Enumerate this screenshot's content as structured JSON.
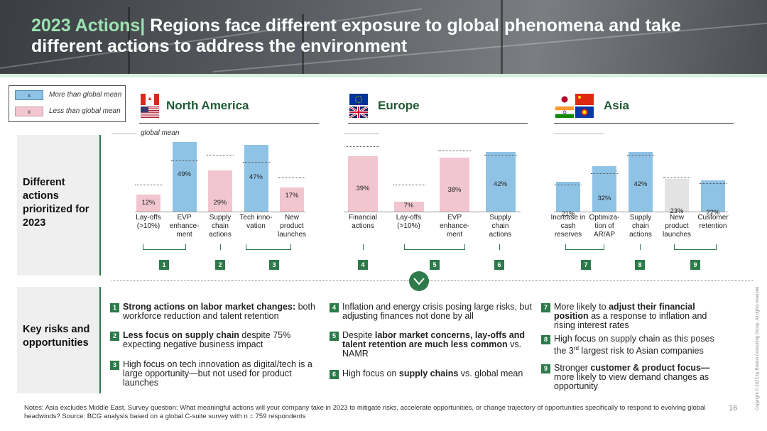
{
  "header": {
    "title_accent": "2023 Actions|",
    "title_main": " Regions face different exposure to global phenomena and take different actions to address the environment"
  },
  "legend": {
    "more_marker": "x",
    "more_label": "More than global mean",
    "less_marker": "x",
    "less_label": "Less than global mean"
  },
  "colors": {
    "more": "#8fc3e6",
    "less": "#f1c6d0",
    "neutral": "#e3e3e3",
    "accent_green": "#2d7a4a",
    "region_title": "#1e5a36"
  },
  "regions": {
    "na": {
      "name": "North America",
      "flags": [
        "canada-flag-icon",
        "usa-flag-icon"
      ]
    },
    "eu": {
      "name": "Europe",
      "flags": [
        "eu-flag-icon",
        "uk-flag-icon"
      ]
    },
    "asia": {
      "name": "Asia",
      "flags": [
        "japan-flag-icon",
        "china-flag-icon",
        "india-flag-icon",
        "asean-flag-icon"
      ]
    }
  },
  "rows": {
    "actions_label": "Different actions prioritized for 2023",
    "risks_label": "Key risks and opportunities"
  },
  "global_mean_label": "global mean",
  "chart_data": [
    {
      "type": "bar",
      "region": "North America",
      "categories": [
        "Lay-offs (>10%)",
        "EVP enhance-ment",
        "Supply chain actions",
        "Tech inno-vation",
        "New product launches"
      ],
      "values": [
        12,
        49,
        29,
        47,
        17
      ],
      "labels": [
        "12%",
        "49%",
        "29%",
        "47%",
        "17%"
      ],
      "global_mean": [
        19,
        36,
        40,
        35,
        24
      ],
      "status": [
        "less",
        "more",
        "less",
        "more",
        "less"
      ],
      "ylim": [
        0,
        55
      ]
    },
    {
      "type": "bar",
      "region": "Europe",
      "categories": [
        "Financial actions",
        "Lay-offs (>10%)",
        "EVP enhance-ment",
        "Supply chain actions"
      ],
      "values": [
        39,
        7,
        38,
        42
      ],
      "labels": [
        "39%",
        "7%",
        "38%",
        "42%"
      ],
      "global_mean": [
        46,
        19,
        43,
        40
      ],
      "status": [
        "less",
        "less",
        "less",
        "more"
      ],
      "ylim": [
        0,
        55
      ]
    },
    {
      "type": "bar",
      "region": "Asia",
      "categories": [
        "Increase in cash reserves",
        "Optimiza-tion of AR/AP",
        "Supply chain actions",
        "New product launches",
        "Customer retention"
      ],
      "values": [
        21,
        32,
        42,
        23,
        22
      ],
      "labels": [
        "21%",
        "32%",
        "42%",
        "23%",
        "22%"
      ],
      "global_mean": [
        19,
        27,
        40,
        24,
        20
      ],
      "status": [
        "more",
        "more",
        "more",
        "neutral",
        "more"
      ],
      "ylim": [
        0,
        55
      ]
    }
  ],
  "groups": [
    "1",
    "2",
    "3",
    "4",
    "5",
    "6",
    "7",
    "8",
    "9"
  ],
  "risks": {
    "na": [
      {
        "n": "1",
        "bold": "Strong actions on labor market changes:",
        "rest": " both workforce reduction and talent retention"
      },
      {
        "n": "2",
        "bold": "Less focus on supply chain",
        "rest": " despite 75% expecting negative business impact"
      },
      {
        "n": "3",
        "bold": "",
        "rest": "High focus on tech innovation as digital/tech is a large opportunity—but not used for product launches"
      }
    ],
    "eu": [
      {
        "n": "4",
        "pre": "Inflation and energy crisis posing large risks, but adjusting finances not done by all",
        "bold": "",
        "post": ""
      },
      {
        "n": "5",
        "pre": "Despite ",
        "bold": "labor market concerns, lay-offs and talent retention are much less common",
        "post": " vs. NAMR"
      },
      {
        "n": "6",
        "pre": "High focus on ",
        "bold": "supply chains",
        "post": " vs. global mean"
      }
    ],
    "asia": [
      {
        "n": "7",
        "pre": "More likely to ",
        "bold": "adjust their financial position",
        "post": " as a response to inflation and rising interest rates"
      },
      {
        "n": "8",
        "pre": "High focus on supply chain as this poses the 3",
        "sup": "rd",
        "post": " largest risk to Asian companies"
      },
      {
        "n": "9",
        "pre": "Stronger ",
        "bold": "customer & product focus—",
        "post": "more likely to view demand changes as opportunity"
      }
    ]
  },
  "notes": "Notes: Asia excludes Middle East. Survey question: What meaningful actions will your company take in 2023 to mitigate risks, accelerate opportunities, or change trajectory of opportunities specifically to respond to evolving global headwinds? Source: BCG analysis based on a global C-suite survey with n = 759 respondents",
  "page_number": "16",
  "copyright": "Copyright © 2023 by Boston Consulting Group. All rights reserved."
}
